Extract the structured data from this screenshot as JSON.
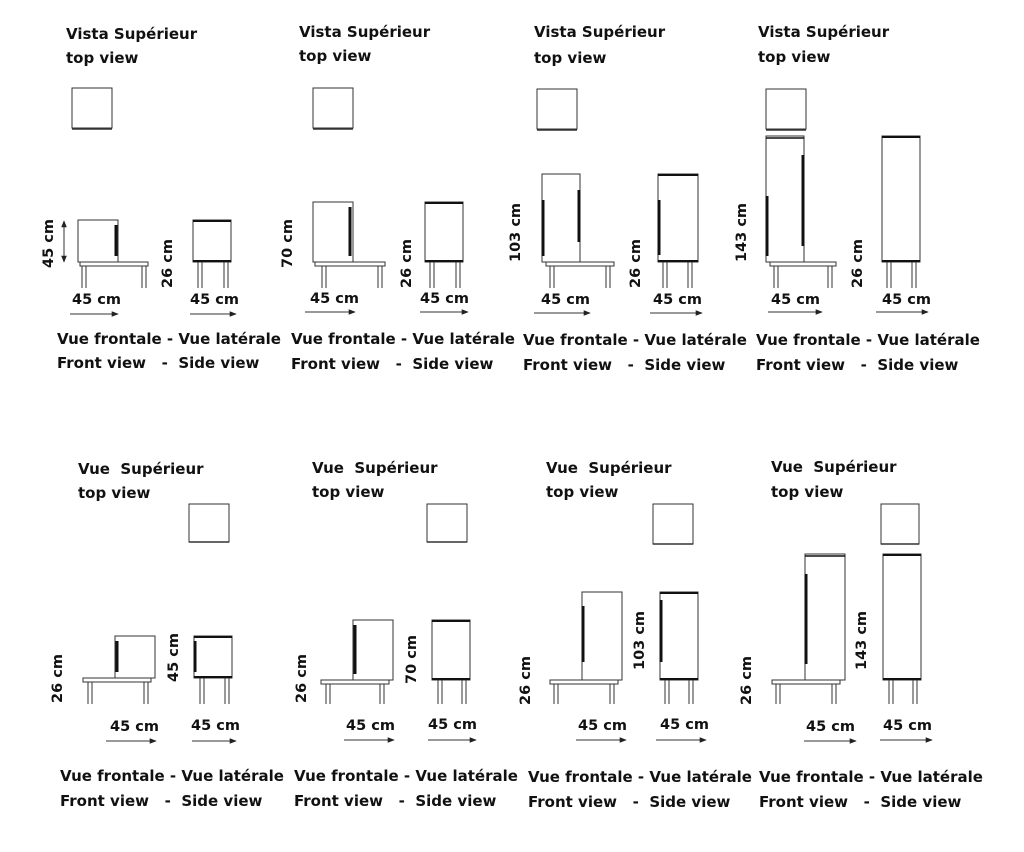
{
  "panels": [
    {
      "title1": "Vista Supérieur",
      "title2": "top view",
      "front_h": "45 cm",
      "side_h": "26 cm",
      "front_w": "45 cm",
      "side_w": "45 cm",
      "cap1": "Vue frontale - Vue latérale",
      "cap2": "Front view   -  Side view"
    },
    {
      "title1": "Vista Supérieur",
      "title2": "top view",
      "front_h": "70 cm",
      "side_h": "26 cm",
      "front_w": "45 cm",
      "side_w": "45 cm",
      "cap1": "Vue frontale - Vue latérale",
      "cap2": "Front view   -  Side view"
    },
    {
      "title1": "Vista Supérieur",
      "title2": "top view",
      "front_h": "103 cm",
      "side_h": "26 cm",
      "front_w": "45 cm",
      "side_w": "45 cm",
      "cap1": "Vue frontale - Vue latérale",
      "cap2": "Front view   -  Side view"
    },
    {
      "title1": "Vista Supérieur",
      "title2": "top view",
      "front_h": "143 cm",
      "side_h": "26 cm",
      "front_w": "45 cm",
      "side_w": "45 cm",
      "cap1": "Vue frontale - Vue latérale",
      "cap2": "Front view   -  Side view"
    },
    {
      "title1": "Vue  Supérieur",
      "title2": "top view",
      "front_h": "26 cm",
      "side_h": "45 cm",
      "front_w": "45 cm",
      "side_w": "45 cm",
      "cap1": "Vue frontale - Vue latérale",
      "cap2": "Front view   -  Side view"
    },
    {
      "title1": "Vue  Supérieur",
      "title2": "top view",
      "front_h": "26 cm",
      "side_h": "70 cm",
      "front_w": "45 cm",
      "side_w": "45 cm",
      "cap1": "Vue frontale - Vue latérale",
      "cap2": "Front view   -  Side view"
    },
    {
      "title1": "Vue  Supérieur",
      "title2": "top view",
      "front_h": "26 cm",
      "side_h": "103 cm",
      "front_w": "45 cm",
      "side_w": "45 cm",
      "cap1": "Vue frontale - Vue latérale",
      "cap2": "Front view   -  Side view"
    },
    {
      "title1": "Vue  Supérieur",
      "title2": "top view",
      "front_h": "26 cm",
      "side_h": "143 cm",
      "front_w": "45 cm",
      "side_w": "45 cm",
      "cap1": "Vue frontale - Vue latérale",
      "cap2": "Front view   -  Side view"
    }
  ]
}
